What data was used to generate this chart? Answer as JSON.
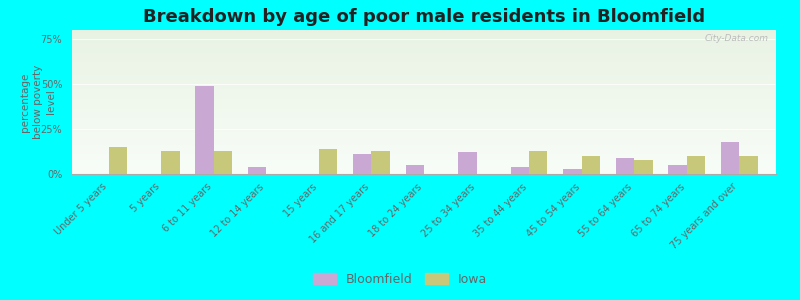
{
  "title": "Breakdown by age of poor male residents in Bloomfield",
  "ylabel": "percentage\nbelow poverty\nlevel",
  "categories": [
    "Under 5 years",
    "5 years",
    "6 to 11 years",
    "12 to 14 years",
    "15 years",
    "16 and 17 years",
    "18 to 24 years",
    "25 to 34 years",
    "35 to 44 years",
    "45 to 54 years",
    "55 to 64 years",
    "65 to 74 years",
    "75 years and over"
  ],
  "bloomfield": [
    0,
    0,
    49,
    4,
    0,
    11,
    5,
    12,
    4,
    3,
    9,
    5,
    18
  ],
  "iowa": [
    15,
    13,
    13,
    0,
    14,
    13,
    0,
    0,
    13,
    10,
    8,
    10,
    10
  ],
  "bloomfield_color": "#c9a8d4",
  "iowa_color": "#c8c87a",
  "outer_bg": "#00ffff",
  "ylim": [
    0,
    80
  ],
  "yticks": [
    0,
    25,
    50,
    75
  ],
  "ytick_labels": [
    "0%",
    "25%",
    "50%",
    "75%"
  ],
  "bar_width": 0.35,
  "title_fontsize": 13,
  "axis_label_fontsize": 7.5,
  "tick_fontsize": 7,
  "legend_fontsize": 9
}
